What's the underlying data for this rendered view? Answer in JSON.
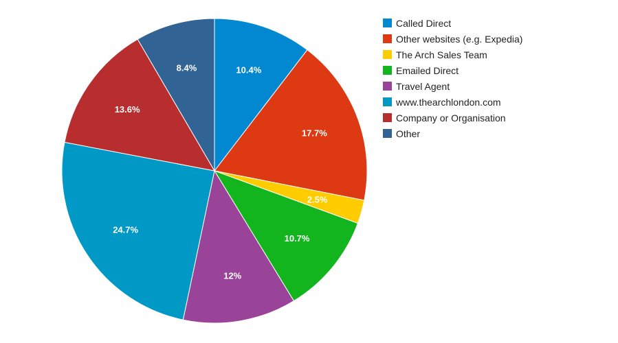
{
  "colors": {
    "background": "#ffffff",
    "slice_stroke": "#ffffff",
    "label_text": "#ffffff"
  },
  "chart_data": {
    "type": "pie",
    "title": "",
    "legend_position": "right",
    "start_angle_deg": 0,
    "direction": "clockwise",
    "value_unit": "%",
    "slices": [
      {
        "name": "Called Direct",
        "value": 10.4,
        "label": "10.4%",
        "color": "#0288d1"
      },
      {
        "name": "Other websites (e.g. Expedia)",
        "value": 17.7,
        "label": "17.7%",
        "color": "#dd3a14"
      },
      {
        "name": "The Arch Sales Team",
        "value": 2.5,
        "label": "2.5%",
        "color": "#ffcc00"
      },
      {
        "name": "Emailed Direct",
        "value": 10.7,
        "label": "10.7%",
        "color": "#13b51f"
      },
      {
        "name": "Travel Agent",
        "value": 12,
        "label": "12%",
        "color": "#994499"
      },
      {
        "name": "www.thearchlondon.com",
        "value": 24.7,
        "label": "24.7%",
        "color": "#0099c6"
      },
      {
        "name": "Company or Organisation",
        "value": 13.6,
        "label": "13.6%",
        "color": "#b82e2e"
      },
      {
        "name": "Other",
        "value": 8.4,
        "label": "8.4%",
        "color": "#316395"
      }
    ]
  }
}
